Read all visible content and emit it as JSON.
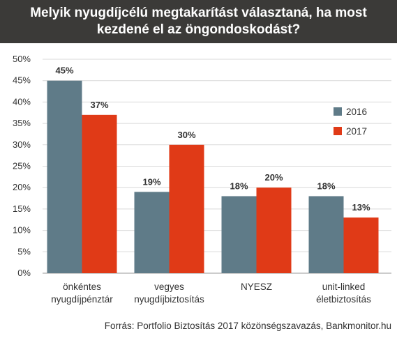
{
  "title_line1": "Melyik nyugdíjcélú megtakarítást választaná, ha most",
  "title_line2": "kezdené el az öngondoskodást?",
  "source": "Forrás: Portfolio Biztosítás 2017 közönségszavazás, Bankmonitor.hu",
  "chart_data": {
    "type": "bar",
    "categories": [
      [
        "önkéntes",
        "nyugdíjpénztár"
      ],
      [
        "vegyes",
        "nyugdíjbiztosítás"
      ],
      [
        "NYESZ"
      ],
      [
        "unit-linked",
        "életbiztosítás"
      ]
    ],
    "series": [
      {
        "name": "2016",
        "values": [
          45,
          19,
          18,
          18
        ],
        "color": "#5f7b88"
      },
      {
        "name": "2017",
        "values": [
          37,
          30,
          20,
          13
        ],
        "color": "#e03a17"
      }
    ],
    "data_labels": [
      [
        "45%",
        "19%",
        "18%",
        "18%"
      ],
      [
        "37%",
        "30%",
        "20%",
        "13%"
      ]
    ],
    "yticks": [
      "0%",
      "5%",
      "10%",
      "15%",
      "20%",
      "25%",
      "30%",
      "35%",
      "40%",
      "45%",
      "50%"
    ],
    "ylim": [
      0,
      50
    ],
    "grid": true,
    "legend_position": "right"
  }
}
